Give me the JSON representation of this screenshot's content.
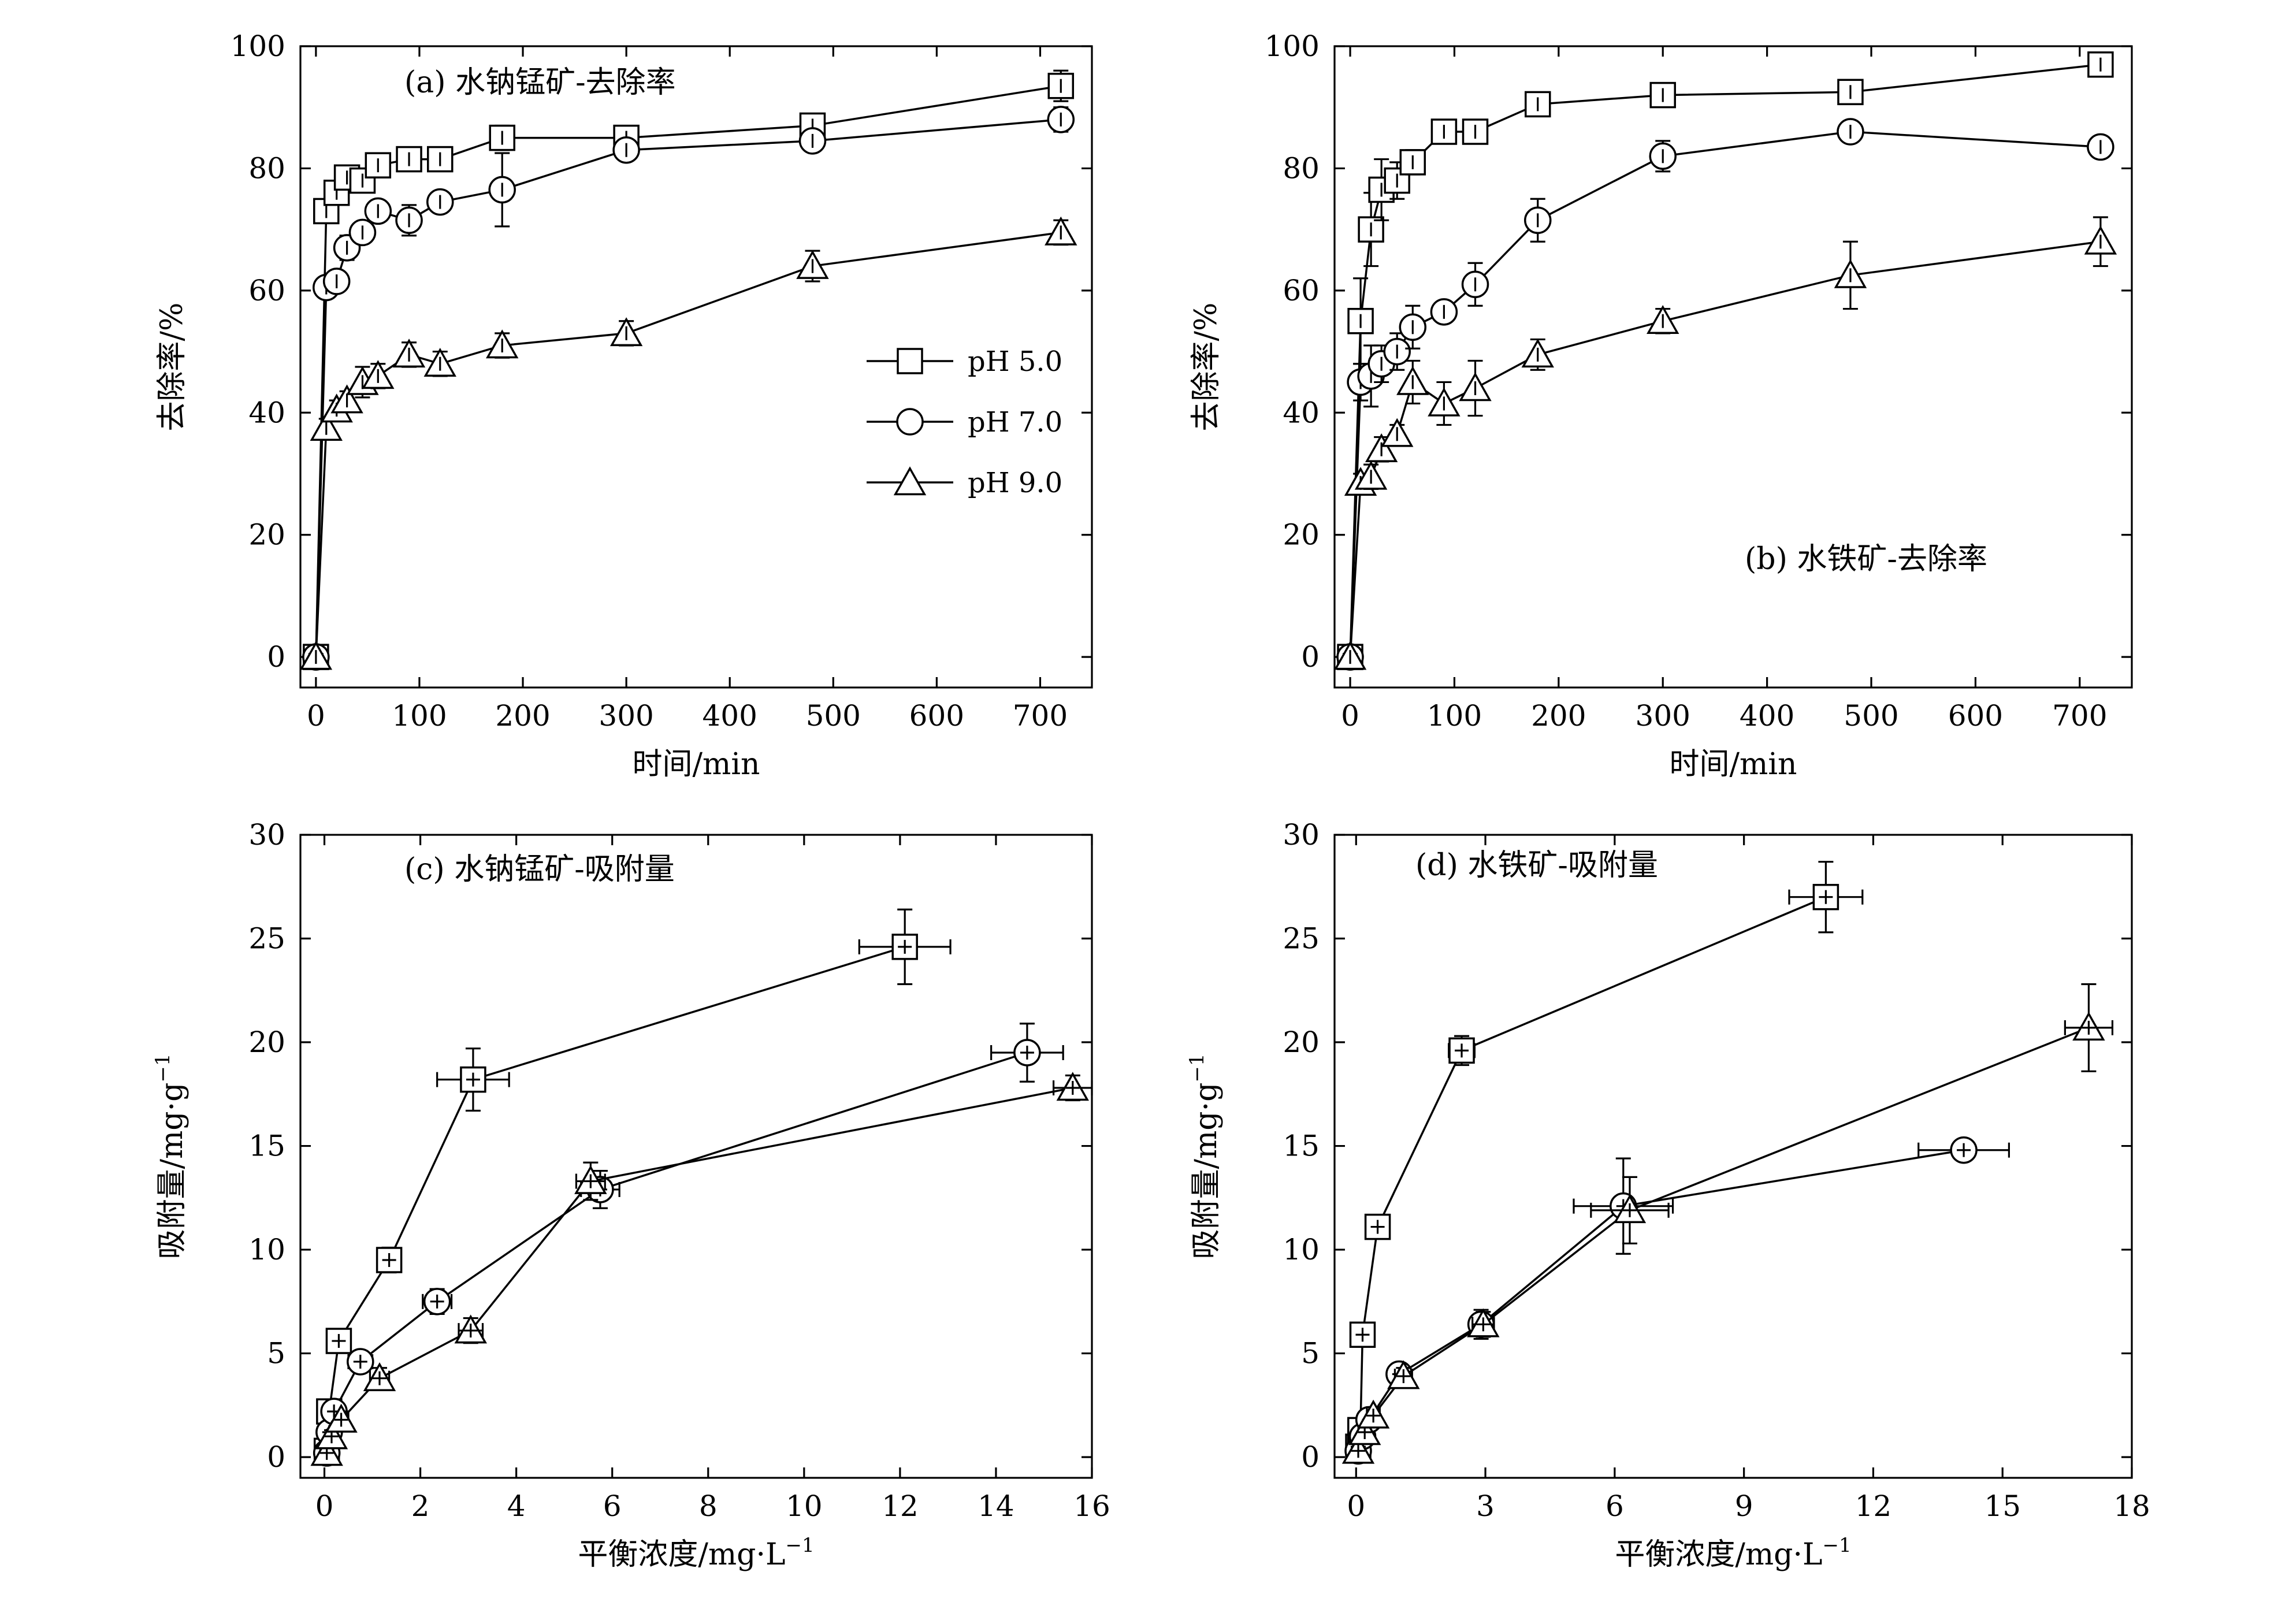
{
  "chart_data": [
    {
      "id": "a",
      "type": "line",
      "title": "(a) 水钠锰矿-去除率",
      "xlabel": "时间/min",
      "ylabel": "去除率/%",
      "xlim": [
        -15,
        750
      ],
      "ylim": [
        -5,
        100
      ],
      "xticks": [
        0,
        100,
        200,
        300,
        400,
        500,
        600,
        700
      ],
      "yticks": [
        0,
        20,
        40,
        60,
        80,
        100
      ],
      "legend": "center-right",
      "series": [
        {
          "name": "pH 5.0",
          "marker": "square",
          "x": [
            0,
            10,
            20,
            30,
            45,
            60,
            90,
            120,
            180,
            300,
            480,
            720
          ],
          "y": [
            0,
            73,
            76,
            78.5,
            78,
            80.5,
            81.5,
            81.5,
            85,
            85,
            87,
            93.5
          ],
          "yerr": [
            0.5,
            1.5,
            1,
            1.5,
            1.5,
            1,
            1.5,
            1.5,
            2,
            1.5,
            1.5,
            2.5
          ]
        },
        {
          "name": "pH 7.0",
          "marker": "circle",
          "x": [
            0,
            10,
            20,
            30,
            45,
            60,
            90,
            120,
            180,
            300,
            480,
            720
          ],
          "y": [
            0,
            60.5,
            61.5,
            67,
            69.5,
            73,
            71.5,
            74.5,
            76.5,
            83,
            84.5,
            88
          ],
          "yerr": [
            0.5,
            1.5,
            1.5,
            2,
            1.5,
            1,
            2.5,
            1.5,
            6,
            1.5,
            1.5,
            2
          ]
        },
        {
          "name": "pH 9.0",
          "marker": "triangle",
          "x": [
            0,
            10,
            20,
            30,
            45,
            60,
            90,
            120,
            180,
            300,
            480,
            720
          ],
          "y": [
            0,
            37.5,
            40.5,
            42,
            45,
            46,
            49.5,
            48,
            51,
            53,
            64,
            69.5
          ],
          "yerr": [
            0.5,
            1.5,
            1.5,
            1.5,
            2.5,
            2,
            2,
            2,
            2,
            2,
            2.5,
            2
          ]
        }
      ]
    },
    {
      "id": "b",
      "type": "line",
      "title": "(b) 水铁矿-去除率",
      "xlabel": "时间/min",
      "ylabel": "去除率/%",
      "xlim": [
        -15,
        750
      ],
      "ylim": [
        -5,
        100
      ],
      "xticks": [
        0,
        100,
        200,
        300,
        400,
        500,
        600,
        700
      ],
      "yticks": [
        0,
        20,
        40,
        60,
        80,
        100
      ],
      "series": [
        {
          "name": "pH 5.0",
          "marker": "square",
          "x": [
            0,
            10,
            20,
            30,
            45,
            60,
            90,
            120,
            180,
            300,
            480,
            720
          ],
          "y": [
            0,
            55,
            70,
            76.5,
            78,
            81,
            86,
            86,
            90.5,
            92,
            92.5,
            97
          ],
          "yerr": [
            0.5,
            7,
            6,
            5,
            3,
            2,
            1.5,
            1.5,
            1.5,
            1.5,
            1,
            1
          ]
        },
        {
          "name": "pH 7.0",
          "marker": "circle",
          "x": [
            0,
            10,
            20,
            30,
            45,
            60,
            90,
            120,
            180,
            300,
            480,
            720
          ],
          "y": [
            0,
            45,
            46,
            48,
            50,
            54,
            56.5,
            61,
            71.5,
            82,
            86,
            83.5
          ],
          "yerr": [
            0.5,
            3,
            5,
            3,
            3,
            3.5,
            1.5,
            3.5,
            3.5,
            2.5,
            1.5,
            1
          ]
        },
        {
          "name": "pH 9.0",
          "marker": "triangle",
          "x": [
            0,
            10,
            20,
            30,
            45,
            60,
            90,
            120,
            180,
            300,
            480,
            720
          ],
          "y": [
            0,
            28.5,
            29.5,
            34,
            36.5,
            45,
            41.5,
            44,
            49.5,
            55,
            62.5,
            68
          ],
          "yerr": [
            0.5,
            1.5,
            2,
            2,
            1.5,
            3.5,
            3.5,
            4.5,
            2.5,
            2,
            5.5,
            4
          ]
        }
      ]
    },
    {
      "id": "c",
      "type": "line",
      "title": "(c) 水钠锰矿-吸附量",
      "xlabel": "平衡浓度/mg·L",
      "xlabel_sup": "−1",
      "ylabel": "吸附量/mg·g",
      "ylabel_sup": "−1",
      "xlim": [
        -0.5,
        16
      ],
      "ylim": [
        -1,
        30
      ],
      "xticks": [
        0,
        2,
        4,
        6,
        8,
        10,
        12,
        14,
        16
      ],
      "yticks": [
        0,
        5,
        10,
        15,
        20,
        25,
        30
      ],
      "series": [
        {
          "name": "pH 5.0",
          "marker": "square",
          "x": [
            0.05,
            0.1,
            0.3,
            1.35,
            3.1,
            12.1
          ],
          "y": [
            0.3,
            2.2,
            5.6,
            9.5,
            18.2,
            24.6
          ],
          "xerr": [
            0.05,
            0.1,
            0.15,
            0.25,
            0.75,
            0.95
          ],
          "yerr": [
            0.3,
            0.4,
            0.4,
            0.6,
            1.5,
            1.8
          ]
        },
        {
          "name": "pH 7.0",
          "marker": "circle",
          "x": [
            0.05,
            0.1,
            0.2,
            0.75,
            2.35,
            5.75,
            14.65
          ],
          "y": [
            0.2,
            1.2,
            2.2,
            4.6,
            7.5,
            12.9,
            19.5
          ],
          "xerr": [
            0.05,
            0.1,
            0.15,
            0.25,
            0.3,
            0.4,
            0.75
          ],
          "yerr": [
            0.2,
            0.3,
            0.4,
            0.5,
            0.6,
            0.9,
            1.4
          ]
        },
        {
          "name": "pH 9.0",
          "marker": "triangle",
          "x": [
            0.05,
            0.15,
            0.35,
            1.15,
            3.05,
            5.55,
            15.6
          ],
          "y": [
            0.2,
            1.0,
            1.8,
            3.8,
            6.1,
            13.3,
            17.8
          ],
          "xerr": [
            0.05,
            0.1,
            0.15,
            0.2,
            0.25,
            0.3,
            0.4
          ],
          "yerr": [
            0.2,
            0.3,
            0.4,
            0.5,
            0.6,
            0.9,
            0.6
          ]
        }
      ]
    },
    {
      "id": "d",
      "type": "line",
      "title": "(d) 水铁矿-吸附量",
      "xlabel": "平衡浓度/mg·L",
      "xlabel_sup": "−1",
      "ylabel": "吸附量/mg·g",
      "ylabel_sup": "−1",
      "xlim": [
        -0.5,
        18
      ],
      "ylim": [
        -1,
        30
      ],
      "xticks": [
        0,
        3,
        6,
        9,
        12,
        15,
        18
      ],
      "yticks": [
        0,
        5,
        10,
        15,
        20,
        25,
        30
      ],
      "series": [
        {
          "name": "pH 5.0",
          "marker": "square",
          "x": [
            0.05,
            0.1,
            0.15,
            0.5,
            2.45,
            10.9
          ],
          "y": [
            0.5,
            1.3,
            5.9,
            11.1,
            19.6,
            27.0
          ],
          "xerr": [
            0.05,
            0.05,
            0.1,
            0.15,
            0.3,
            0.85
          ],
          "yerr": [
            0.3,
            0.5,
            0.5,
            0.5,
            0.7,
            1.7
          ]
        },
        {
          "name": "pH 7.0",
          "marker": "circle",
          "x": [
            0.05,
            0.15,
            0.3,
            1.0,
            2.9,
            6.2,
            14.1
          ],
          "y": [
            0.3,
            1.0,
            1.8,
            4.0,
            6.4,
            12.1,
            14.8
          ],
          "xerr": [
            0.05,
            0.1,
            0.15,
            0.2,
            0.25,
            1.15,
            1.05
          ],
          "yerr": [
            0.2,
            0.3,
            0.4,
            0.4,
            0.7,
            2.3,
            0.4
          ]
        },
        {
          "name": "pH 9.0",
          "marker": "triangle",
          "x": [
            0.05,
            0.2,
            0.4,
            1.1,
            2.95,
            6.35,
            17.0
          ],
          "y": [
            0.3,
            1.2,
            2.0,
            3.9,
            6.4,
            11.9,
            20.7
          ],
          "xerr": [
            0.05,
            0.1,
            0.15,
            0.2,
            0.25,
            0.9,
            0.55
          ],
          "yerr": [
            0.2,
            0.3,
            0.4,
            0.4,
            0.6,
            1.6,
            2.1
          ]
        }
      ]
    }
  ]
}
